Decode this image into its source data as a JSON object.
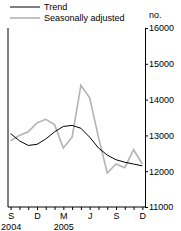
{
  "chart_data": {
    "type": "line",
    "y_label": "no.",
    "categories": [
      "S 2004",
      null,
      null,
      "D",
      null,
      null,
      "M 2005",
      null,
      null,
      "J",
      null,
      null,
      "S",
      null,
      null,
      "D"
    ],
    "series": [
      {
        "name": "Trend",
        "color": "#000000",
        "values": [
          13050,
          12850,
          12720,
          12750,
          12900,
          13100,
          13250,
          13280,
          13200,
          12950,
          12650,
          12450,
          12320,
          12250,
          12200,
          12150
        ]
      },
      {
        "name": "Seasonally adjusted",
        "color": "#b3b3b3",
        "values": [
          12850,
          13000,
          13100,
          13350,
          13450,
          13300,
          12650,
          12950,
          14400,
          14050,
          12950,
          11950,
          12200,
          12100,
          12600,
          12200
        ]
      }
    ],
    "ylim": [
      11000,
      16000
    ],
    "yticks": [
      11000,
      12000,
      13000,
      14000,
      15000,
      16000
    ],
    "legend": "top-left"
  }
}
